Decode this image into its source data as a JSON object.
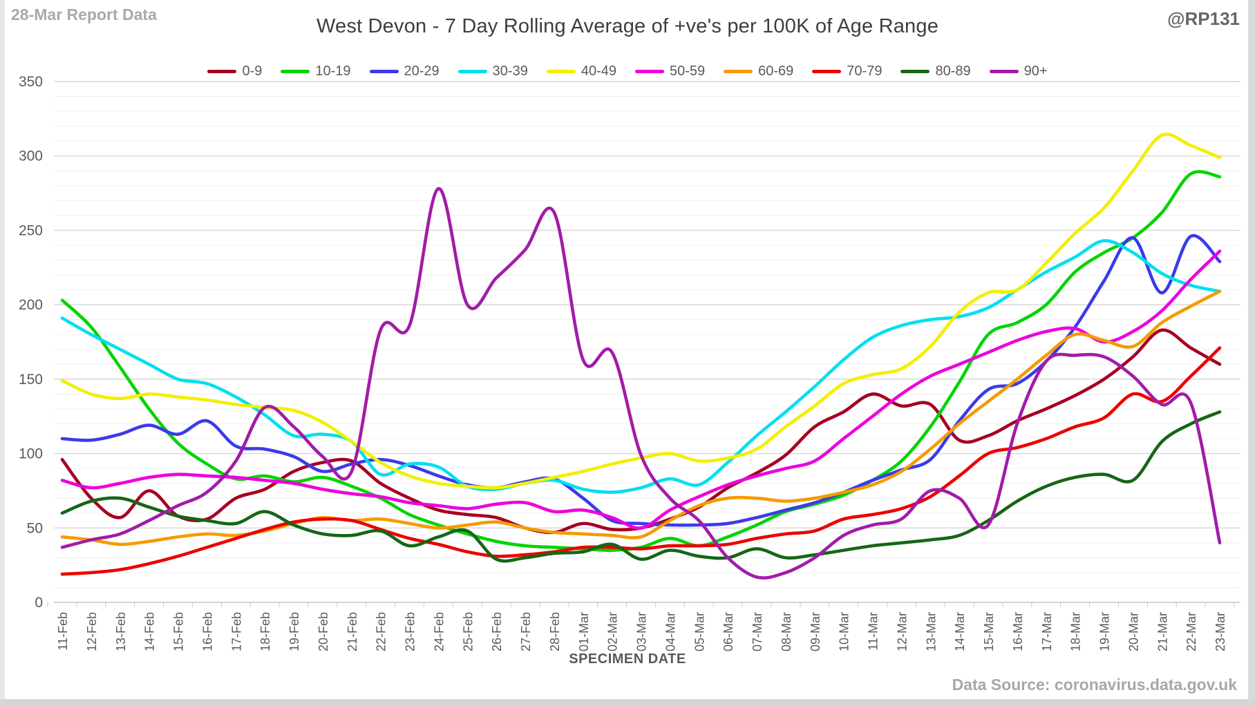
{
  "page": {
    "report_label": "28-Mar Report Data",
    "handle": "@RP131",
    "source": "Data Source: coronavirus.data.gov.uk"
  },
  "chart_data": {
    "type": "line",
    "title": "West Devon - 7 Day Rolling Average of +ve's per 100K of Age Range",
    "xlabel": "SPECIMEN DATE",
    "ylabel": "",
    "ylim": [
      0,
      350
    ],
    "y_ticks": [
      0,
      50,
      100,
      150,
      200,
      250,
      300,
      350
    ],
    "grid": "horizontal, minor every 10, major every 50",
    "legend_position": "top",
    "line_style": "smooth",
    "x": [
      "11-Feb",
      "12-Feb",
      "13-Feb",
      "14-Feb",
      "15-Feb",
      "16-Feb",
      "17-Feb",
      "18-Feb",
      "19-Feb",
      "20-Feb",
      "21-Feb",
      "22-Feb",
      "23-Feb",
      "24-Feb",
      "25-Feb",
      "26-Feb",
      "27-Feb",
      "28-Feb",
      "01-Mar",
      "02-Mar",
      "03-Mar",
      "04-Mar",
      "05-Mar",
      "06-Mar",
      "07-Mar",
      "08-Mar",
      "09-Mar",
      "10-Mar",
      "11-Mar",
      "12-Mar",
      "13-Mar",
      "14-Mar",
      "15-Mar",
      "16-Mar",
      "17-Mar",
      "18-Mar",
      "19-Mar",
      "20-Mar",
      "21-Mar",
      "22-Mar",
      "23-Mar"
    ],
    "series": [
      {
        "name": "0-9",
        "color": "#a50021",
        "values": [
          96,
          70,
          57,
          75,
          58,
          56,
          70,
          76,
          88,
          94,
          95,
          80,
          70,
          62,
          59,
          57,
          50,
          47,
          53,
          49,
          50,
          56,
          64,
          77,
          87,
          99,
          118,
          128,
          140,
          132,
          133,
          109,
          112,
          122,
          130,
          139,
          150,
          165,
          183,
          171,
          160
        ]
      },
      {
        "name": "10-19",
        "color": "#00d400",
        "values": [
          203,
          185,
          158,
          130,
          107,
          93,
          83,
          85,
          81,
          84,
          78,
          70,
          59,
          52,
          46,
          41,
          38,
          37,
          36,
          35,
          37,
          43,
          38,
          44,
          52,
          61,
          66,
          72,
          82,
          95,
          118,
          148,
          180,
          188,
          200,
          222,
          235,
          245,
          262,
          288,
          286
        ]
      },
      {
        "name": "20-29",
        "color": "#3a3aec",
        "values": [
          110,
          109,
          113,
          119,
          113,
          122,
          105,
          103,
          98,
          88,
          93,
          96,
          92,
          85,
          79,
          77,
          81,
          83,
          70,
          55,
          53,
          52,
          52,
          53,
          57,
          62,
          67,
          74,
          82,
          89,
          96,
          122,
          143,
          147,
          162,
          185,
          216,
          245,
          208,
          246,
          229
        ]
      },
      {
        "name": "30-39",
        "color": "#00dff0",
        "values": [
          191,
          180,
          170,
          160,
          150,
          147,
          138,
          126,
          112,
          113,
          108,
          86,
          93,
          91,
          78,
          76,
          80,
          82,
          76,
          74,
          77,
          83,
          79,
          94,
          112,
          128,
          145,
          163,
          178,
          186,
          190,
          192,
          198,
          210,
          222,
          232,
          243,
          235,
          221,
          213,
          209
        ]
      },
      {
        "name": "40-49",
        "color": "#f2ef00",
        "values": [
          149,
          140,
          137,
          140,
          138,
          136,
          133,
          131,
          129,
          121,
          108,
          94,
          85,
          80,
          78,
          77,
          80,
          84,
          88,
          93,
          97,
          100,
          95,
          97,
          103,
          118,
          132,
          147,
          153,
          157,
          172,
          195,
          208,
          210,
          228,
          248,
          265,
          290,
          314,
          307,
          299
        ]
      },
      {
        "name": "50-59",
        "color": "#ee00dd",
        "values": [
          82,
          77,
          80,
          84,
          86,
          85,
          84,
          82,
          80,
          76,
          73,
          71,
          67,
          65,
          63,
          66,
          67,
          61,
          62,
          57,
          50,
          62,
          71,
          79,
          85,
          90,
          95,
          110,
          125,
          140,
          152,
          160,
          168,
          176,
          182,
          184,
          175,
          182,
          196,
          217,
          236
        ]
      },
      {
        "name": "60-69",
        "color": "#f59b00",
        "values": [
          44,
          42,
          39,
          41,
          44,
          46,
          45,
          48,
          53,
          57,
          55,
          56,
          53,
          50,
          52,
          54,
          50,
          47,
          46,
          45,
          44,
          55,
          65,
          70,
          70,
          68,
          70,
          74,
          79,
          88,
          103,
          120,
          135,
          150,
          166,
          180,
          176,
          172,
          188,
          199,
          209
        ]
      },
      {
        "name": "70-79",
        "color": "#ec0000",
        "values": [
          19,
          20,
          22,
          26,
          31,
          37,
          43,
          49,
          54,
          56,
          55,
          49,
          43,
          39,
          34,
          31,
          32,
          34,
          37,
          37,
          36,
          38,
          38,
          39,
          43,
          46,
          48,
          56,
          59,
          63,
          71,
          85,
          100,
          104,
          110,
          118,
          124,
          140,
          135,
          152,
          171
        ]
      },
      {
        "name": "80-89",
        "color": "#156615",
        "values": [
          60,
          68,
          70,
          64,
          58,
          55,
          53,
          61,
          52,
          46,
          45,
          48,
          38,
          44,
          48,
          29,
          30,
          33,
          34,
          39,
          29,
          35,
          31,
          30,
          36,
          30,
          32,
          35,
          38,
          40,
          42,
          45,
          55,
          68,
          78,
          84,
          86,
          82,
          108,
          120,
          128
        ]
      },
      {
        "name": "90+",
        "color": "#a21ba8",
        "values": [
          37,
          42,
          46,
          55,
          65,
          74,
          95,
          131,
          118,
          98,
          88,
          183,
          186,
          278,
          200,
          218,
          237,
          262,
          163,
          168,
          99,
          70,
          55,
          30,
          17,
          20,
          30,
          45,
          52,
          56,
          75,
          70,
          52,
          120,
          162,
          166,
          165,
          152,
          133,
          134,
          40
        ]
      }
    ]
  }
}
